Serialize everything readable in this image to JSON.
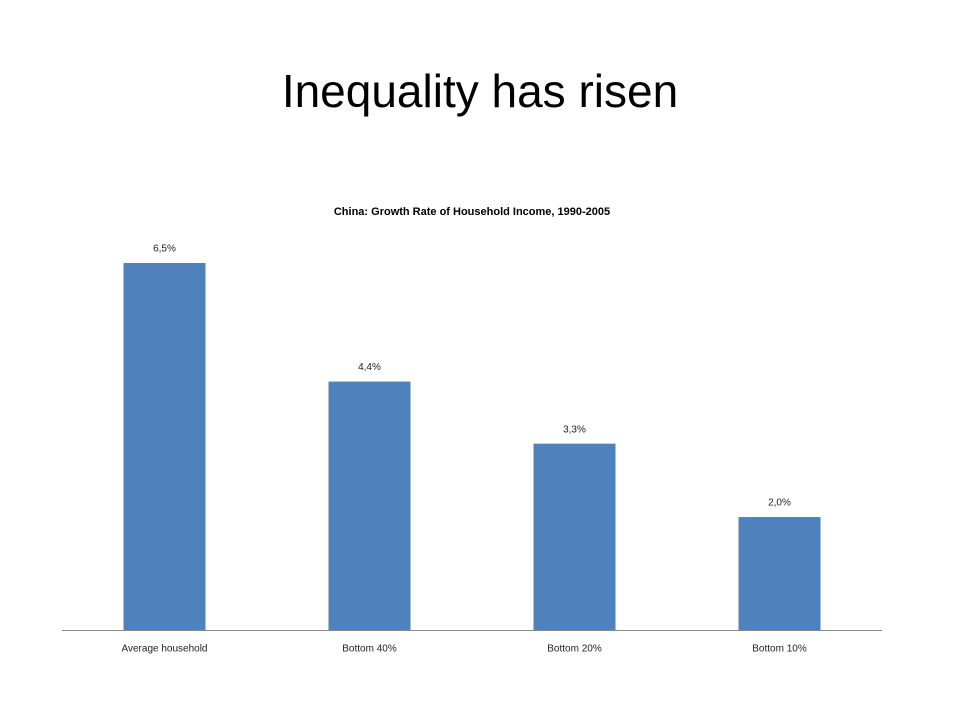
{
  "title": "Inequality has risen",
  "chart_data": {
    "type": "bar",
    "title": "China: Growth Rate of Household Income, 1990-2005",
    "categories": [
      "Average household",
      "Bottom 40%",
      "Bottom 20%",
      "Bottom 10%"
    ],
    "values": [
      6.5,
      4.4,
      3.3,
      2.0
    ],
    "value_labels": [
      "6,5%",
      "4,4%",
      "3,3%",
      "2,0%"
    ],
    "color": "#4f81bd"
  }
}
